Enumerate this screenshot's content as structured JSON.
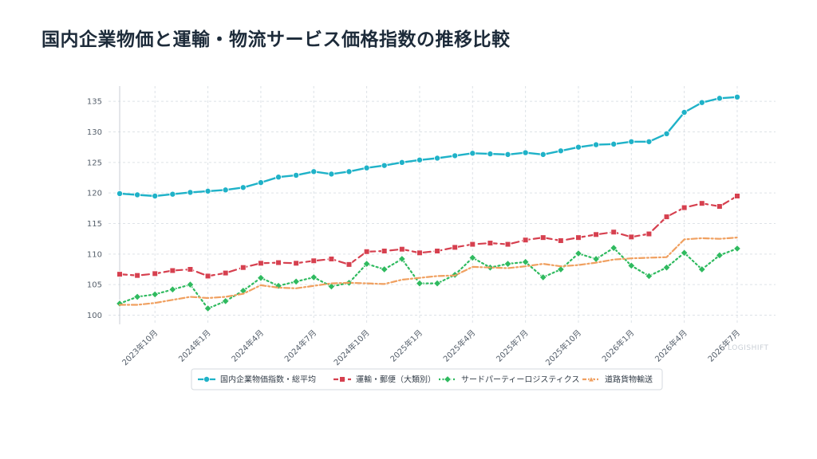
{
  "title": "国内企業物価と運輸・物流サービス価格指数の推移比較",
  "watermark": "LOGISHIFT",
  "colors": {
    "grid": "#dde2e7",
    "axis": "#c8ced5"
  },
  "chart_data": {
    "type": "line",
    "title": "国内企業物価と運輸・物流サービス価格指数の推移比較",
    "xlabel": "",
    "ylabel": "",
    "ylim": [
      98.5,
      137.5
    ],
    "yticks": [
      100,
      105,
      110,
      115,
      120,
      125,
      130,
      135
    ],
    "grid": true,
    "legend_position": "bottom",
    "x_tick_labels": [
      {
        "index": 2,
        "label": "2023年10月"
      },
      {
        "index": 5,
        "label": "2024年1月"
      },
      {
        "index": 8,
        "label": "2024年4月"
      },
      {
        "index": 11,
        "label": "2024年7月"
      },
      {
        "index": 14,
        "label": "2024年10月"
      },
      {
        "index": 17,
        "label": "2025年1月"
      },
      {
        "index": 20,
        "label": "2025年4月"
      },
      {
        "index": 23,
        "label": "2025年7月"
      },
      {
        "index": 26,
        "label": "2025年10月"
      },
      {
        "index": 29,
        "label": "2026年1月"
      },
      {
        "index": 32,
        "label": "2026年4月"
      },
      {
        "index": 35,
        "label": "2026年7月"
      }
    ],
    "x": [
      "2023-08",
      "2023-09",
      "2023-10",
      "2023-11",
      "2023-12",
      "2024-01",
      "2024-02",
      "2024-03",
      "2024-04",
      "2024-05",
      "2024-06",
      "2024-07",
      "2024-08",
      "2024-09",
      "2024-10",
      "2024-11",
      "2024-12",
      "2025-01",
      "2025-02",
      "2025-03",
      "2025-04",
      "2025-05",
      "2025-06",
      "2025-07",
      "2025-08",
      "2025-09",
      "2025-10",
      "2025-11",
      "2025-12",
      "2026-01",
      "2026-02",
      "2026-03",
      "2026-04",
      "2026-05",
      "2026-06",
      "2026-07"
    ],
    "series": [
      {
        "name": "国内企業物価指数・総平均",
        "color": "#1fb2c8",
        "marker": "circle",
        "dash": "solid",
        "values": [
          119.9,
          119.7,
          119.5,
          119.8,
          120.1,
          120.3,
          120.5,
          120.9,
          121.7,
          122.6,
          122.9,
          123.5,
          123.1,
          123.5,
          124.1,
          124.5,
          125.0,
          125.4,
          125.7,
          126.1,
          126.5,
          126.4,
          126.3,
          126.6,
          126.3,
          126.9,
          127.5,
          127.9,
          128.0,
          128.4,
          128.4,
          129.7,
          133.2,
          134.8,
          135.5,
          135.7
        ]
      },
      {
        "name": "運輸・郵便（大類別）",
        "color": "#d6404f",
        "marker": "square",
        "dash": "dashed",
        "values": [
          106.7,
          106.5,
          106.8,
          107.3,
          107.5,
          106.4,
          106.9,
          107.8,
          108.5,
          108.6,
          108.5,
          108.9,
          109.2,
          108.3,
          110.4,
          110.5,
          110.8,
          110.2,
          110.5,
          111.1,
          111.6,
          111.8,
          111.6,
          112.3,
          112.7,
          112.2,
          112.7,
          113.2,
          113.6,
          112.8,
          113.3,
          116.1,
          117.6,
          118.3,
          117.8,
          119.5
        ]
      },
      {
        "name": "サードパーティーロジスティクス",
        "color": "#2fba5f",
        "marker": "diamond",
        "dash": "dotted",
        "values": [
          101.9,
          103.0,
          103.4,
          104.2,
          105.0,
          101.1,
          102.3,
          104.0,
          106.1,
          104.8,
          105.5,
          106.2,
          104.7,
          105.3,
          108.4,
          107.5,
          109.2,
          105.2,
          105.2,
          106.6,
          109.4,
          107.8,
          108.4,
          108.7,
          106.2,
          107.5,
          110.1,
          109.2,
          111.0,
          108.1,
          106.4,
          107.8,
          110.2,
          107.5,
          109.8,
          110.9
        ]
      },
      {
        "name": "道路貨物輸送",
        "color": "#f0a060",
        "marker": "triangle",
        "dash": "dashdot",
        "values": [
          101.7,
          101.7,
          102.0,
          102.5,
          103.0,
          102.8,
          103.0,
          103.5,
          104.9,
          104.5,
          104.4,
          104.8,
          105.2,
          105.3,
          105.2,
          105.1,
          105.8,
          106.1,
          106.4,
          106.5,
          107.9,
          107.8,
          107.7,
          108.0,
          108.4,
          108.0,
          108.2,
          108.6,
          109.1,
          109.3,
          109.4,
          109.5,
          112.4,
          112.6,
          112.5,
          112.7
        ]
      }
    ]
  }
}
